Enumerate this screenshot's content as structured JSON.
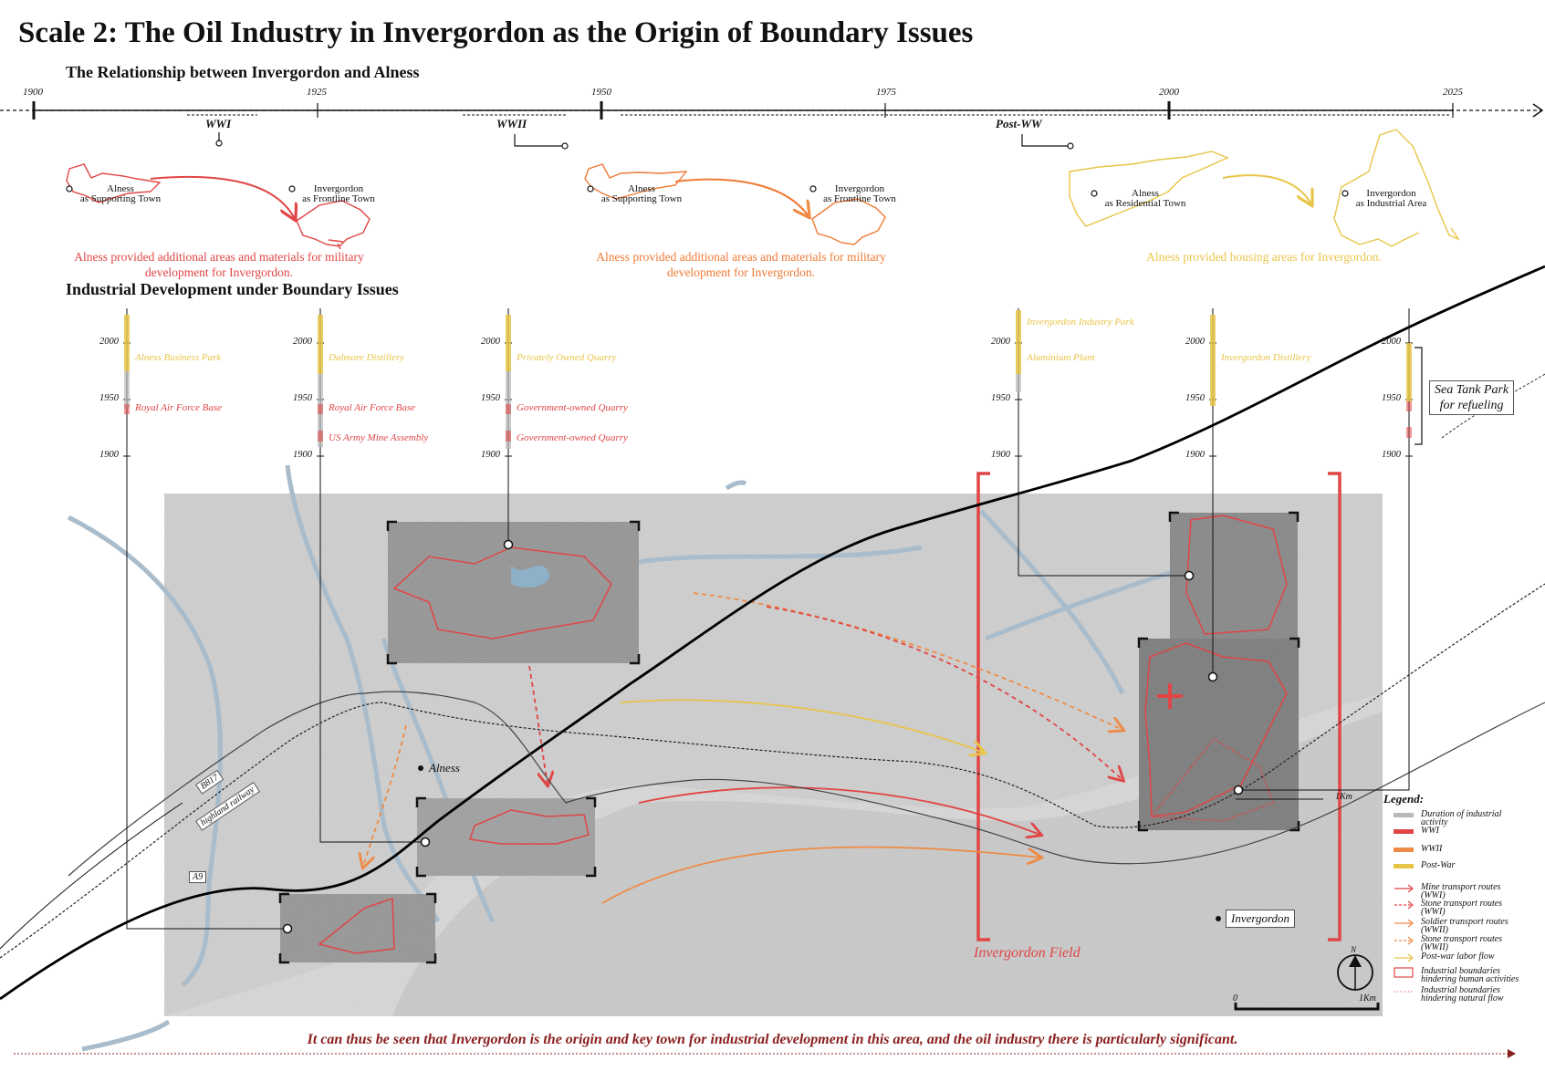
{
  "title": "Scale 2: The Oil Industry in Invergordon as the Origin of Boundary Issues",
  "timeline": {
    "heading": "The Relationship between Invergordon and Alness",
    "years": [
      "1900",
      "1925",
      "1950",
      "1975",
      "2000",
      "2025"
    ],
    "periods": [
      "WWI",
      "WWII",
      "Post-WW"
    ]
  },
  "phases": [
    {
      "from_label": "Alness\nas Supporting Town",
      "to_label": "Invergordon\nas Frontline Town",
      "note": "Alness provided additional areas and materials for military development for Invergordon.",
      "color": "#e14545"
    },
    {
      "from_label": "Alness\nas Supporting Town",
      "to_label": "Invergordon\nas Frontline Town",
      "note": "Alness provided additional areas and materials for military development for Invergordon.",
      "color": "#ef7a35"
    },
    {
      "from_label": "Alness\nas Residential Town",
      "to_label": "Invergordon\nas Industrial Area",
      "note": "Alness provided housing areas for Invergordon.",
      "color": "#e8c548"
    }
  ],
  "industrial": {
    "heading": "Industrial Development under Boundary Issues",
    "scale_years": [
      "2000",
      "1950",
      "1900"
    ],
    "columns": [
      {
        "sites": [
          {
            "name": "Alness Business Park",
            "period": "post-war"
          },
          {
            "name": "Royal Air Force Base",
            "period": "WWI"
          }
        ]
      },
      {
        "sites": [
          {
            "name": "Dalmore Distillery",
            "period": "post-war"
          },
          {
            "name": "Royal Air Force Base",
            "period": "WWI"
          },
          {
            "name": "US Army Mine Assembly",
            "period": "WWI"
          }
        ]
      },
      {
        "sites": [
          {
            "name": "Privately Owned Quarry",
            "period": "post-war"
          },
          {
            "name": "Government-owned Quarry",
            "period": "WWI"
          },
          {
            "name": "Government-owned Quarry",
            "period": "WWI"
          }
        ]
      },
      {
        "sites": [
          {
            "name": "Invergordon Industry Park",
            "period": "post-war"
          },
          {
            "name": "Aluminium Plant",
            "period": "post-war"
          }
        ]
      },
      {
        "sites": [
          {
            "name": "Invergordon Distillery",
            "period": "post-war"
          }
        ]
      },
      {
        "sites": [],
        "callout": "Sea Tank Park\nfor refueling"
      }
    ]
  },
  "map": {
    "labels": {
      "alness": "Alness",
      "invergordon": "Invergordon",
      "field": "Invergordon Field",
      "road_b817": "B817",
      "railway": "highland railway",
      "road_a9": "A9",
      "north": "N"
    },
    "scale": {
      "start": "0",
      "end": "1Km",
      "mark": "1Km"
    }
  },
  "legend": {
    "title": "Legend:",
    "items": [
      {
        "label": "Duration of industrial activity",
        "color": "#b9b9b9",
        "icon": "bar"
      },
      {
        "label": "WWI",
        "color": "#e14545",
        "icon": "bar"
      },
      {
        "label": "WWII",
        "color": "#ef8a45",
        "icon": "bar"
      },
      {
        "label": "Post-War",
        "color": "#e8c548",
        "icon": "bar"
      },
      {
        "label": "Mine transport routes (WWI)",
        "color": "#e14545",
        "icon": "solid-arrow"
      },
      {
        "label": "Stone transport routes (WWI)",
        "color": "#e14545",
        "icon": "dashed-arrow"
      },
      {
        "label": "Soldier transport routes (WWII)",
        "color": "#ef8a45",
        "icon": "solid-arrow"
      },
      {
        "label": "Stone transport routes (WWII)",
        "color": "#ef8a45",
        "icon": "dashed-arrow"
      },
      {
        "label": "Post-war labor flow",
        "color": "#e8c548",
        "icon": "solid-arrow"
      },
      {
        "label": "Industrial boundaries hindering human activities",
        "color": "#e14545",
        "icon": "box"
      },
      {
        "label": "Industrial boundaries hindering natural flow",
        "color": "#e14545",
        "icon": "dotted"
      }
    ]
  },
  "conclusion": "It can thus be seen that Invergordon is the origin and key town for industrial development in this area, and the oil industry there is particularly significant."
}
